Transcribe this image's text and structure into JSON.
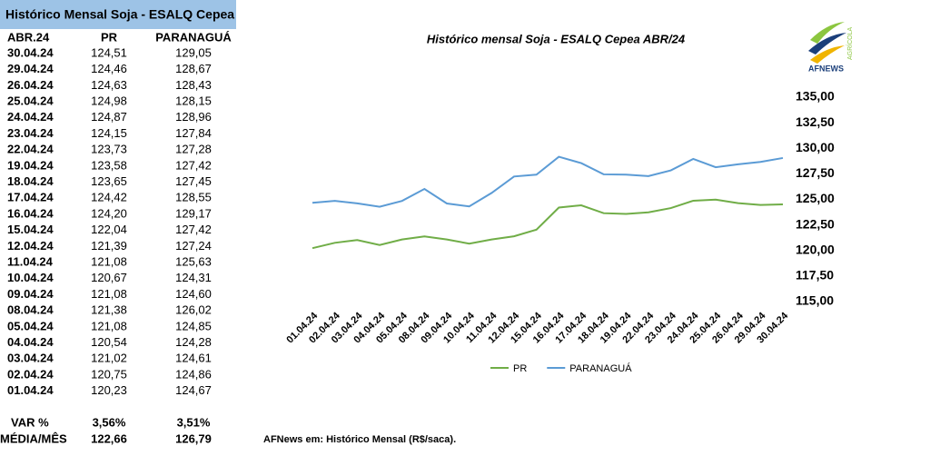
{
  "table": {
    "title": "Histórico Mensal Soja - ESALQ Cepea",
    "headers": [
      "ABR.24",
      "PR",
      "PARANAGUÁ"
    ],
    "rows": [
      [
        "30.04.24",
        "124,51",
        "129,05"
      ],
      [
        "29.04.24",
        "124,46",
        "128,67"
      ],
      [
        "26.04.24",
        "124,63",
        "128,43"
      ],
      [
        "25.04.24",
        "124,98",
        "128,15"
      ],
      [
        "24.04.24",
        "124,87",
        "128,96"
      ],
      [
        "23.04.24",
        "124,15",
        "127,84"
      ],
      [
        "22.04.24",
        "123,73",
        "127,28"
      ],
      [
        "19.04.24",
        "123,58",
        "127,42"
      ],
      [
        "18.04.24",
        "123,65",
        "127,45"
      ],
      [
        "17.04.24",
        "124,42",
        "128,55"
      ],
      [
        "16.04.24",
        "124,20",
        "129,17"
      ],
      [
        "15.04.24",
        "122,04",
        "127,42"
      ],
      [
        "12.04.24",
        "121,39",
        "127,24"
      ],
      [
        "11.04.24",
        "121,08",
        "125,63"
      ],
      [
        "10.04.24",
        "120,67",
        "124,31"
      ],
      [
        "09.04.24",
        "121,08",
        "124,60"
      ],
      [
        "08.04.24",
        "121,38",
        "126,02"
      ],
      [
        "05.04.24",
        "121,08",
        "124,85"
      ],
      [
        "04.04.24",
        "120,54",
        "124,28"
      ],
      [
        "03.04.24",
        "121,02",
        "124,61"
      ],
      [
        "02.04.24",
        "120,75",
        "124,86"
      ],
      [
        "01.04.24",
        "120,23",
        "124,67"
      ]
    ],
    "summary": [
      [
        "VAR %",
        "3,56%",
        "3,51%"
      ],
      [
        "MÉDIA/MÊS",
        "122,66",
        "126,79"
      ]
    ]
  },
  "chart_data": {
    "type": "line",
    "title": "Histórico mensal Soja - ESALQ Cepea ABR/24",
    "categories": [
      "01.04.24",
      "02.04.24",
      "03.04.24",
      "04.04.24",
      "05.04.24",
      "08.04.24",
      "09.04.24",
      "10.04.24",
      "11.04.24",
      "12.04.24",
      "15.04.24",
      "16.04.24",
      "17.04.24",
      "18.04.24",
      "19.04.24",
      "22.04.24",
      "23.04.24",
      "24.04.24",
      "25.04.24",
      "26.04.24",
      "29.04.24",
      "30.04.24"
    ],
    "series": [
      {
        "name": "PR",
        "color": "#70ad47",
        "values": [
          120.23,
          120.75,
          121.02,
          120.54,
          121.08,
          121.38,
          121.08,
          120.67,
          121.08,
          121.39,
          122.04,
          124.2,
          124.42,
          123.65,
          123.58,
          123.73,
          124.15,
          124.87,
          124.98,
          124.63,
          124.46,
          124.51
        ]
      },
      {
        "name": "PARANAGUÁ",
        "color": "#5b9bd5",
        "values": [
          124.67,
          124.86,
          124.61,
          124.28,
          124.85,
          126.02,
          124.6,
          124.31,
          125.63,
          127.24,
          127.42,
          129.17,
          128.55,
          127.45,
          127.42,
          127.28,
          127.84,
          128.96,
          128.15,
          128.43,
          128.67,
          129.05
        ]
      }
    ],
    "ylim": [
      115,
      135
    ],
    "yticks": [
      {
        "value": 115,
        "label": "115,00"
      },
      {
        "value": 117.5,
        "label": "117,50"
      },
      {
        "value": 120,
        "label": "120,00"
      },
      {
        "value": 122.5,
        "label": "122,50"
      },
      {
        "value": 125,
        "label": "125,00"
      },
      {
        "value": 127.5,
        "label": "127,50"
      },
      {
        "value": 130,
        "label": "130,00"
      },
      {
        "value": 132.5,
        "label": "132,50"
      },
      {
        "value": 135,
        "label": "135,00"
      }
    ],
    "legend": "bottom"
  },
  "footnote": "AFNews em: Histórico Mensal (R$/saca).",
  "logo": {
    "name": "AFNEWS",
    "tag": "AGRÍCOLA"
  }
}
